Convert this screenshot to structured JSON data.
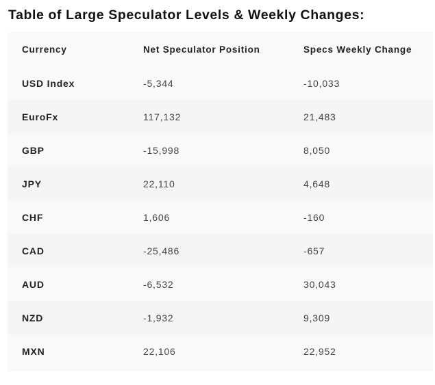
{
  "title": "Table of Large Speculator Levels & Weekly Changes:",
  "columns": [
    "Currency",
    "Net Speculator Position",
    "Specs Weekly Change"
  ],
  "rows": [
    {
      "currency": "USD Index",
      "net_position": "-5,344",
      "weekly_change": "-10,033"
    },
    {
      "currency": "EuroFx",
      "net_position": "117,132",
      "weekly_change": "21,483"
    },
    {
      "currency": "GBP",
      "net_position": "-15,998",
      "weekly_change": "8,050"
    },
    {
      "currency": "JPY",
      "net_position": "22,110",
      "weekly_change": "4,648"
    },
    {
      "currency": "CHF",
      "net_position": "1,606",
      "weekly_change": "-160"
    },
    {
      "currency": "CAD",
      "net_position": "-25,486",
      "weekly_change": "-657"
    },
    {
      "currency": "AUD",
      "net_position": "-6,532",
      "weekly_change": "30,043"
    },
    {
      "currency": "NZD",
      "net_position": "-1,932",
      "weekly_change": "9,309"
    },
    {
      "currency": "MXN",
      "net_position": "22,106",
      "weekly_change": "22,952"
    }
  ]
}
